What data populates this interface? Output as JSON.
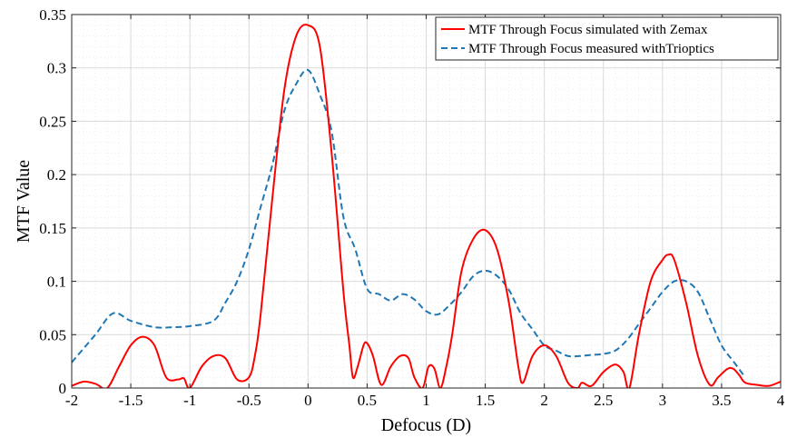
{
  "chart_data": {
    "type": "line",
    "xlabel": "Defocus (D)",
    "ylabel": "MTF Value",
    "xlim": [
      -2,
      4
    ],
    "ylim": [
      0,
      0.35
    ],
    "xticks": [
      "-2",
      "-1.5",
      "-1",
      "-0.5",
      "0",
      "0.5",
      "1",
      "1.5",
      "2",
      "2.5",
      "3",
      "3.5",
      "4"
    ],
    "yticks": [
      "0",
      "0.05",
      "0.1",
      "0.15",
      "0.2",
      "0.25",
      "0.3",
      "0.35"
    ],
    "grid": true,
    "legend_position": "top-right",
    "series": [
      {
        "name": "MTF Through Focus simulated with Zemax",
        "color": "#ff0000",
        "style": "solid",
        "x": [
          -2,
          -1.9,
          -1.8,
          -1.7,
          -1.6,
          -1.5,
          -1.4,
          -1.3,
          -1.2,
          -1.1,
          -1.05,
          -1.0,
          -0.9,
          -0.8,
          -0.7,
          -0.6,
          -0.5,
          -0.45,
          -0.4,
          -0.3,
          -0.2,
          -0.1,
          0,
          0.1,
          0.2,
          0.3,
          0.35,
          0.38,
          0.42,
          0.47,
          0.5,
          0.55,
          0.62,
          0.7,
          0.78,
          0.85,
          0.9,
          0.97,
          1.02,
          1.07,
          1.12,
          1.17,
          1.22,
          1.3,
          1.4,
          1.5,
          1.6,
          1.7,
          1.78,
          1.82,
          1.9,
          2.0,
          2.1,
          2.2,
          2.28,
          2.32,
          2.4,
          2.5,
          2.6,
          2.67,
          2.72,
          2.8,
          2.9,
          3.0,
          3.05,
          3.1,
          3.2,
          3.3,
          3.4,
          3.47,
          3.55,
          3.6,
          3.65,
          3.7,
          3.8,
          3.9,
          4.0
        ],
        "y": [
          0.002,
          0.006,
          0.004,
          0.0,
          0.02,
          0.04,
          0.048,
          0.04,
          0.01,
          0.008,
          0.009,
          0.0,
          0.02,
          0.03,
          0.028,
          0.008,
          0.01,
          0.03,
          0.07,
          0.18,
          0.28,
          0.33,
          0.34,
          0.32,
          0.22,
          0.09,
          0.04,
          0.01,
          0.02,
          0.04,
          0.042,
          0.03,
          0.003,
          0.02,
          0.03,
          0.028,
          0.01,
          0.0,
          0.02,
          0.018,
          0.0,
          0.02,
          0.05,
          0.11,
          0.14,
          0.148,
          0.13,
          0.08,
          0.02,
          0.005,
          0.03,
          0.04,
          0.03,
          0.005,
          0.0,
          0.005,
          0.002,
          0.015,
          0.022,
          0.015,
          0.0,
          0.05,
          0.1,
          0.12,
          0.125,
          0.12,
          0.08,
          0.03,
          0.003,
          0.01,
          0.018,
          0.018,
          0.012,
          0.005,
          0.003,
          0.002,
          0.006
        ]
      },
      {
        "name": "MTF Through Focus measured withTrioptics",
        "color": "#1f77b4",
        "style": "dashed",
        "x": [
          -2,
          -1.8,
          -1.65,
          -1.5,
          -1.3,
          -1.15,
          -1.0,
          -0.8,
          -0.7,
          -0.6,
          -0.5,
          -0.4,
          -0.3,
          -0.2,
          -0.1,
          0,
          0.1,
          0.2,
          0.3,
          0.4,
          0.5,
          0.6,
          0.7,
          0.8,
          0.9,
          1.0,
          1.1,
          1.2,
          1.3,
          1.4,
          1.5,
          1.6,
          1.7,
          1.8,
          1.9,
          2.0,
          2.1,
          2.2,
          2.3,
          2.4,
          2.5,
          2.6,
          2.7,
          2.8,
          2.9,
          3.0,
          3.1,
          3.2,
          3.3,
          3.4,
          3.5,
          3.6,
          3.7
        ],
        "y": [
          0.024,
          0.05,
          0.07,
          0.063,
          0.057,
          0.057,
          0.058,
          0.063,
          0.08,
          0.1,
          0.13,
          0.17,
          0.21,
          0.26,
          0.285,
          0.298,
          0.275,
          0.24,
          0.16,
          0.13,
          0.093,
          0.088,
          0.082,
          0.088,
          0.083,
          0.072,
          0.069,
          0.078,
          0.09,
          0.105,
          0.11,
          0.105,
          0.092,
          0.07,
          0.055,
          0.04,
          0.035,
          0.03,
          0.03,
          0.031,
          0.032,
          0.035,
          0.045,
          0.06,
          0.075,
          0.09,
          0.1,
          0.1,
          0.09,
          0.065,
          0.04,
          0.025,
          0.01
        ]
      }
    ]
  }
}
